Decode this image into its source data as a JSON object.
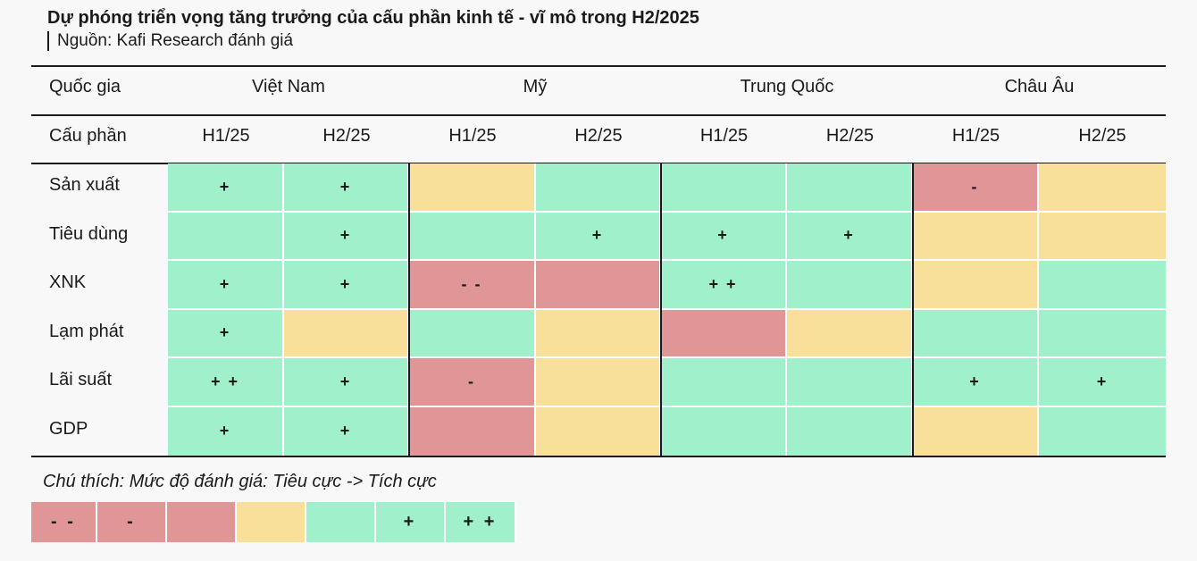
{
  "title": "Dự phóng triển vọng tăng trưởng của cấu phần kinh tế - vĩ mô trong H2/2025",
  "source": "Nguồn: Kafi Research đánh giá",
  "colors": {
    "neg": "#e09696",
    "neutral": "#f8e09a",
    "pos": "#a0f0cc"
  },
  "chart_data": {
    "type": "table",
    "header_row1_label": "Quốc gia",
    "header_row2_label": "Cấu phần",
    "countries": [
      "Việt Nam",
      "Mỹ",
      "Trung Quốc",
      "Châu Âu"
    ],
    "periods": [
      "H1/25",
      "H2/25",
      "H1/25",
      "H2/25",
      "H1/25",
      "H2/25",
      "H1/25",
      "H2/25"
    ],
    "rows": [
      {
        "label": "Sản xuất",
        "cells": [
          {
            "c": "pos",
            "t": "+"
          },
          {
            "c": "pos",
            "t": "+"
          },
          {
            "c": "neutral",
            "t": ""
          },
          {
            "c": "pos",
            "t": ""
          },
          {
            "c": "pos",
            "t": ""
          },
          {
            "c": "pos",
            "t": ""
          },
          {
            "c": "neg",
            "t": "-"
          },
          {
            "c": "neutral",
            "t": ""
          }
        ]
      },
      {
        "label": "Tiêu dùng",
        "cells": [
          {
            "c": "pos",
            "t": ""
          },
          {
            "c": "pos",
            "t": "+"
          },
          {
            "c": "pos",
            "t": ""
          },
          {
            "c": "pos",
            "t": "+"
          },
          {
            "c": "pos",
            "t": "+"
          },
          {
            "c": "pos",
            "t": "+"
          },
          {
            "c": "neutral",
            "t": ""
          },
          {
            "c": "neutral",
            "t": ""
          }
        ]
      },
      {
        "label": "XNK",
        "cells": [
          {
            "c": "pos",
            "t": "+"
          },
          {
            "c": "pos",
            "t": "+"
          },
          {
            "c": "neg",
            "t": "- -"
          },
          {
            "c": "neg",
            "t": ""
          },
          {
            "c": "pos",
            "t": "+ +"
          },
          {
            "c": "pos",
            "t": ""
          },
          {
            "c": "neutral",
            "t": ""
          },
          {
            "c": "pos",
            "t": ""
          }
        ]
      },
      {
        "label": "Lạm phát",
        "cells": [
          {
            "c": "pos",
            "t": "+"
          },
          {
            "c": "neutral",
            "t": ""
          },
          {
            "c": "pos",
            "t": ""
          },
          {
            "c": "neutral",
            "t": ""
          },
          {
            "c": "neg",
            "t": ""
          },
          {
            "c": "neutral",
            "t": ""
          },
          {
            "c": "pos",
            "t": ""
          },
          {
            "c": "pos",
            "t": ""
          }
        ]
      },
      {
        "label": "Lãi suất",
        "cells": [
          {
            "c": "pos",
            "t": "+ +"
          },
          {
            "c": "pos",
            "t": "+"
          },
          {
            "c": "neg",
            "t": "-"
          },
          {
            "c": "neutral",
            "t": ""
          },
          {
            "c": "pos",
            "t": ""
          },
          {
            "c": "pos",
            "t": ""
          },
          {
            "c": "pos",
            "t": "+"
          },
          {
            "c": "pos",
            "t": "+"
          }
        ]
      },
      {
        "label": "GDP",
        "cells": [
          {
            "c": "pos",
            "t": "+"
          },
          {
            "c": "pos",
            "t": "+"
          },
          {
            "c": "neg",
            "t": ""
          },
          {
            "c": "neutral",
            "t": ""
          },
          {
            "c": "pos",
            "t": ""
          },
          {
            "c": "pos",
            "t": ""
          },
          {
            "c": "neutral",
            "t": ""
          },
          {
            "c": "pos",
            "t": ""
          }
        ]
      }
    ]
  },
  "legend": {
    "title": "Chú thích: Mức độ đánh giá: Tiêu cực -> Tích cực",
    "items": [
      {
        "c": "neg",
        "t": "- -"
      },
      {
        "c": "neg",
        "t": "-"
      },
      {
        "c": "neg",
        "t": ""
      },
      {
        "c": "neutral",
        "t": ""
      },
      {
        "c": "pos",
        "t": ""
      },
      {
        "c": "pos",
        "t": "+"
      },
      {
        "c": "pos",
        "t": "+ +"
      }
    ]
  }
}
